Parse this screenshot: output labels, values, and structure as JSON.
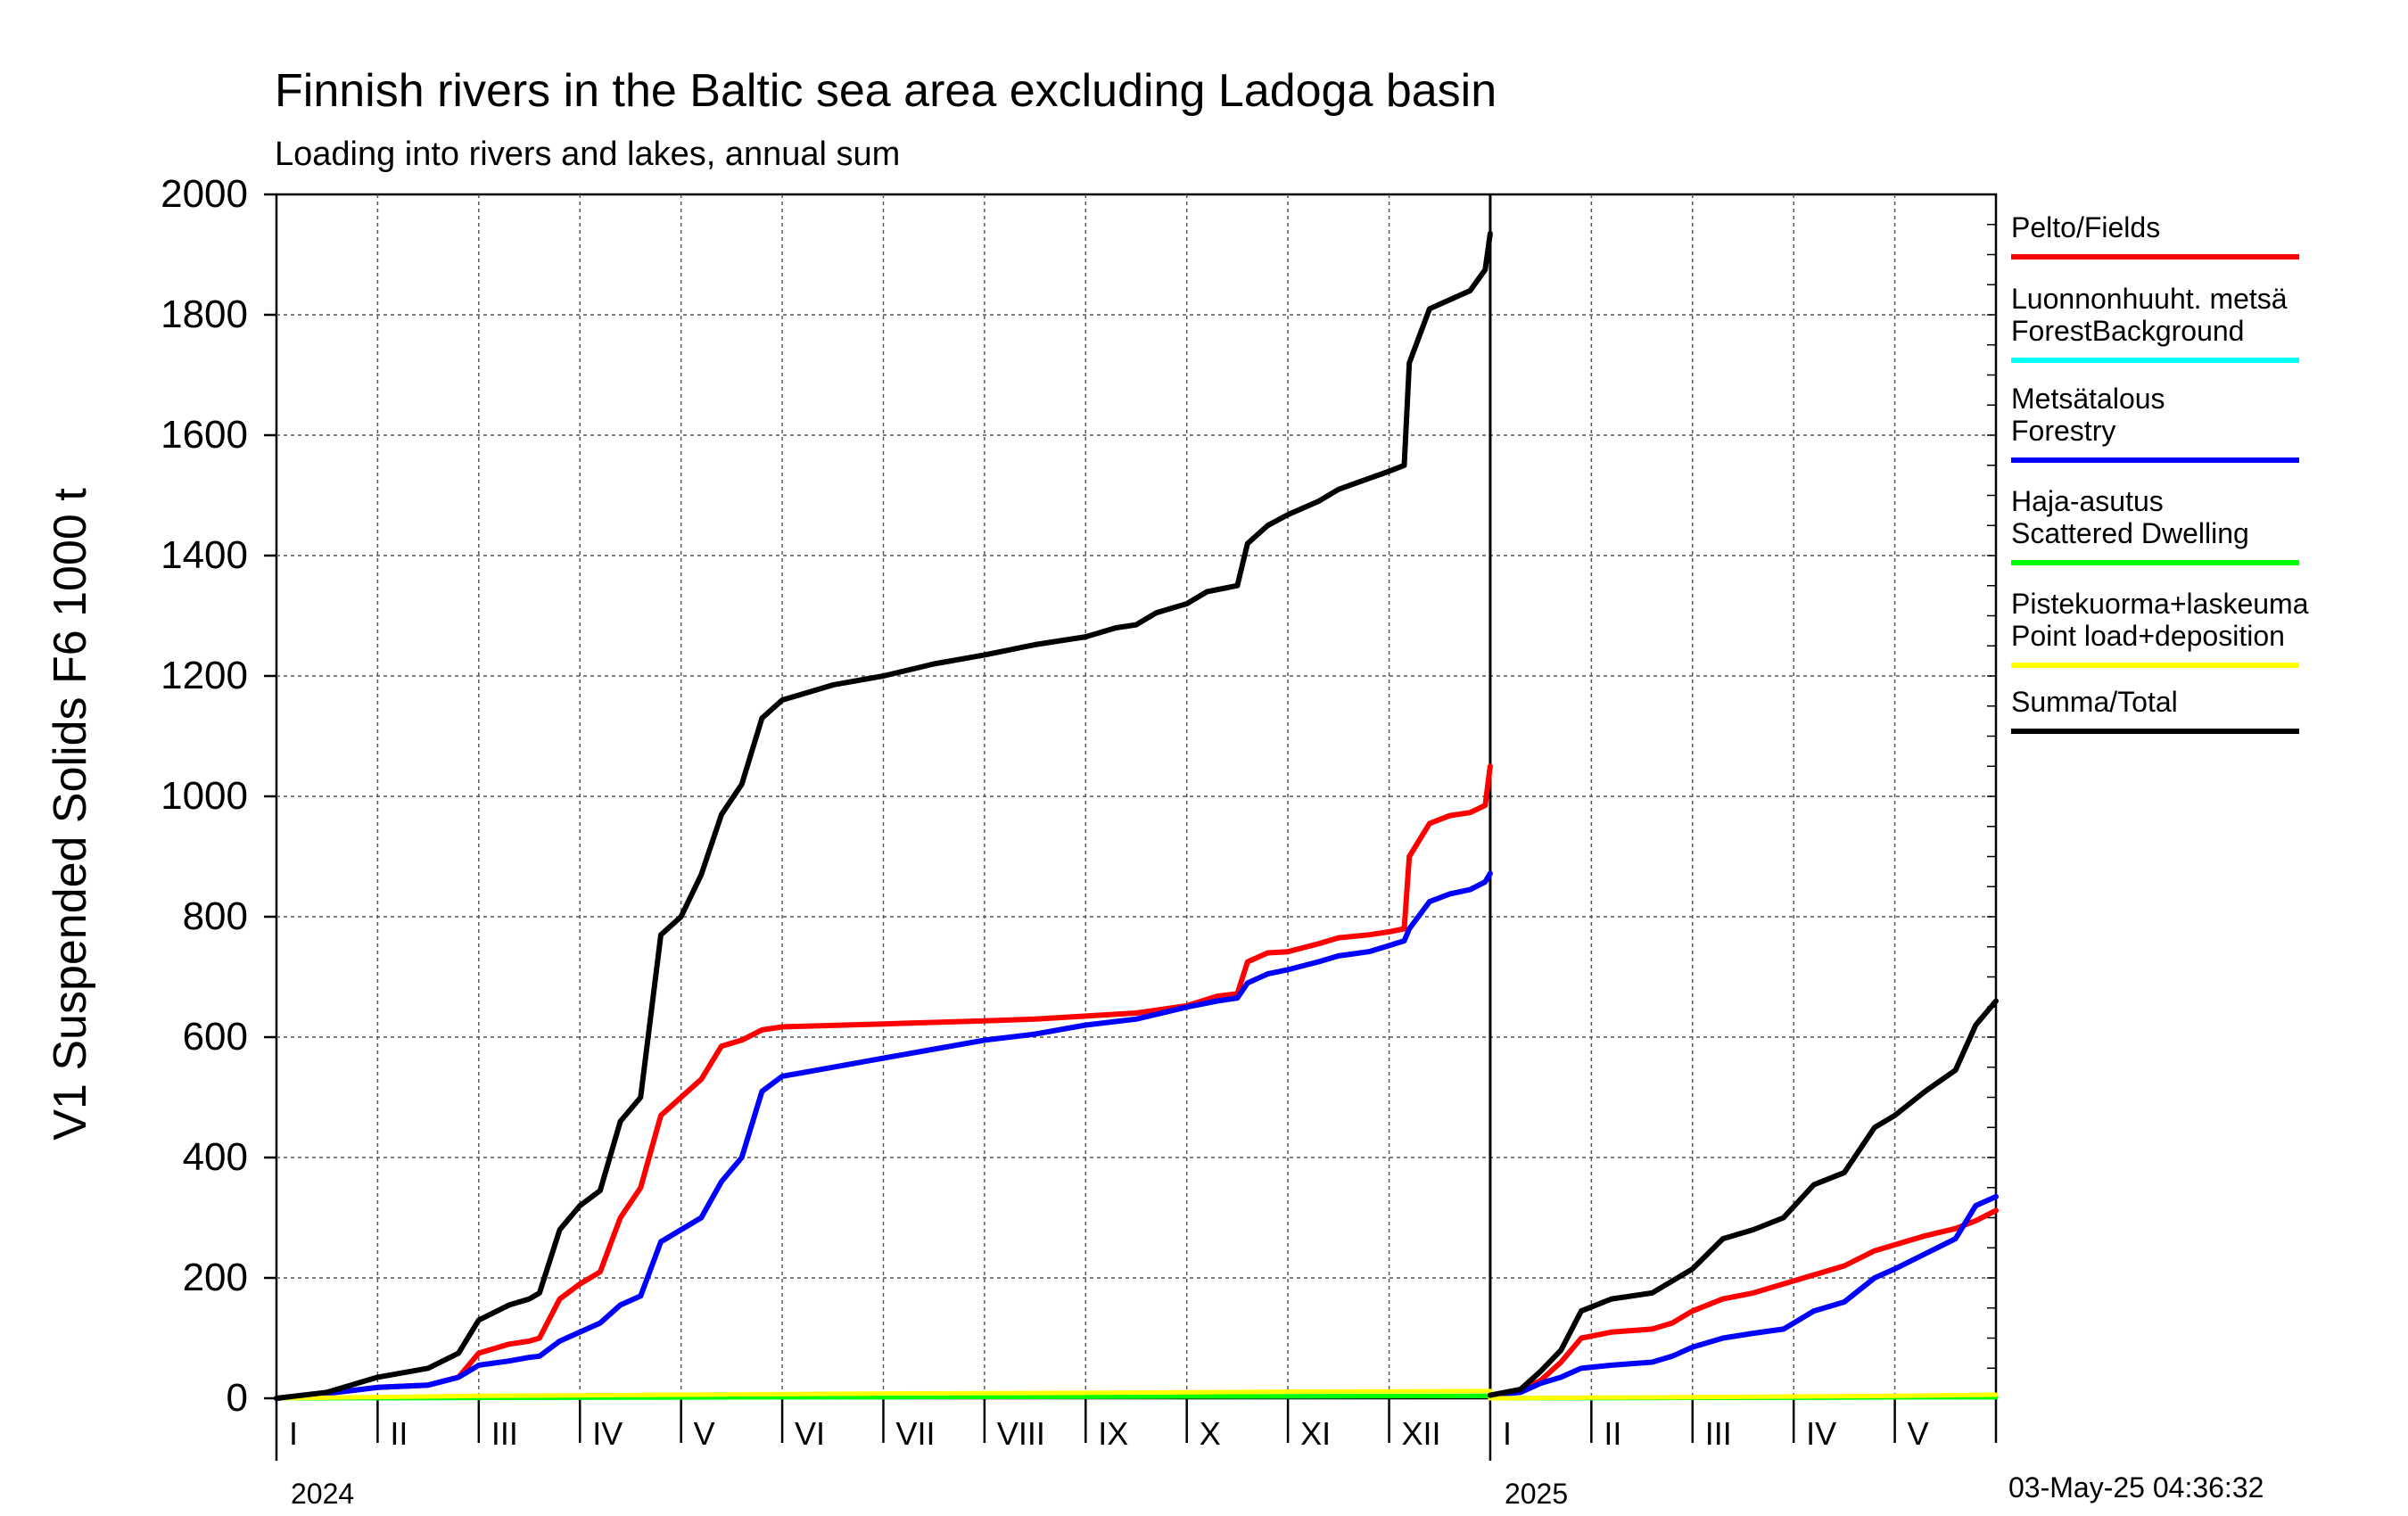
{
  "title": "Finnish rivers in the Baltic sea area excluding Ladoga basin",
  "subtitle": "Loading into rivers and lakes, annual sum",
  "timestamp": "03-May-25 04:36:32",
  "chart_data": {
    "type": "line",
    "title": "Finnish rivers in the Baltic sea area excluding Ladoga basin",
    "subtitle": "Loading into rivers and lakes, annual sum",
    "ylabel": "V1 Suspended Solids F6 1000 t",
    "ylim": [
      0,
      2000
    ],
    "yticks": [
      0,
      200,
      400,
      600,
      800,
      1000,
      1200,
      1400,
      1600,
      1800,
      2000
    ],
    "x_unit": "month index from start of 2024",
    "xlim": [
      0,
      17
    ],
    "x_month_labels": [
      "I",
      "II",
      "III",
      "IV",
      "V",
      "VI",
      "VII",
      "VIII",
      "IX",
      "X",
      "XI",
      "XII",
      "I",
      "II",
      "III",
      "IV",
      "V"
    ],
    "year_labels": [
      {
        "label": "2024",
        "at": 0
      },
      {
        "label": "2025",
        "at": 12
      }
    ],
    "grid": true,
    "legend_position": "right",
    "series": [
      {
        "name": "Pelto/Fields",
        "color": "#ff0000",
        "segments": [
          [
            [
              0,
              0
            ],
            [
              0.5,
              8
            ],
            [
              1,
              18
            ],
            [
              1.5,
              22
            ],
            [
              1.8,
              35
            ],
            [
              2,
              75
            ],
            [
              2.3,
              90
            ],
            [
              2.5,
              95
            ],
            [
              2.6,
              100
            ],
            [
              2.8,
              165
            ],
            [
              3,
              190
            ],
            [
              3.2,
              210
            ],
            [
              3.4,
              300
            ],
            [
              3.6,
              350
            ],
            [
              3.8,
              470
            ],
            [
              4,
              500
            ],
            [
              4.2,
              530
            ],
            [
              4.4,
              585
            ],
            [
              4.6,
              595
            ],
            [
              4.8,
              612
            ],
            [
              5,
              617
            ],
            [
              6,
              622
            ],
            [
              7,
              627
            ],
            [
              7.5,
              630
            ],
            [
              8,
              635
            ],
            [
              8.5,
              640
            ],
            [
              9,
              652
            ],
            [
              9.3,
              668
            ],
            [
              9.5,
              672
            ],
            [
              9.6,
              725
            ],
            [
              9.8,
              740
            ],
            [
              10,
              742
            ],
            [
              10.3,
              755
            ],
            [
              10.5,
              765
            ],
            [
              10.8,
              770
            ],
            [
              11,
              775
            ],
            [
              11.15,
              780
            ],
            [
              11.2,
              900
            ],
            [
              11.4,
              955
            ],
            [
              11.6,
              968
            ],
            [
              11.8,
              973
            ],
            [
              11.95,
              985
            ],
            [
              12,
              1050
            ]
          ],
          [
            [
              12,
              5
            ],
            [
              12.3,
              12
            ],
            [
              12.5,
              30
            ],
            [
              12.7,
              60
            ],
            [
              12.9,
              100
            ],
            [
              13.2,
              110
            ],
            [
              13.6,
              115
            ],
            [
              13.8,
              125
            ],
            [
              14,
              145
            ],
            [
              14.3,
              165
            ],
            [
              14.6,
              175
            ],
            [
              14.9,
              190
            ],
            [
              15.2,
              205
            ],
            [
              15.5,
              220
            ],
            [
              15.8,
              245
            ],
            [
              16,
              255
            ],
            [
              16.3,
              270
            ],
            [
              16.6,
              282
            ],
            [
              16.8,
              295
            ],
            [
              17,
              312
            ]
          ]
        ]
      },
      {
        "name": "Luonnonhuuht. metsä ForestBackground",
        "color": "#00ffff",
        "segments": [
          [
            [
              0,
              0
            ],
            [
              3,
              1
            ],
            [
              6,
              2
            ],
            [
              9,
              3
            ],
            [
              12,
              4
            ]
          ],
          [
            [
              12,
              0
            ],
            [
              15,
              1
            ],
            [
              17,
              2
            ]
          ]
        ]
      },
      {
        "name": "Metsätalous Forestry",
        "color": "#0000ff",
        "segments": [
          [
            [
              0,
              0
            ],
            [
              0.5,
              8
            ],
            [
              1,
              18
            ],
            [
              1.5,
              22
            ],
            [
              1.8,
              35
            ],
            [
              2,
              55
            ],
            [
              2.3,
              62
            ],
            [
              2.5,
              68
            ],
            [
              2.6,
              70
            ],
            [
              2.8,
              95
            ],
            [
              3,
              110
            ],
            [
              3.2,
              125
            ],
            [
              3.4,
              155
            ],
            [
              3.6,
              170
            ],
            [
              3.8,
              260
            ],
            [
              4,
              280
            ],
            [
              4.2,
              300
            ],
            [
              4.4,
              360
            ],
            [
              4.6,
              400
            ],
            [
              4.8,
              510
            ],
            [
              5,
              535
            ],
            [
              5.5,
              550
            ],
            [
              6,
              565
            ],
            [
              6.5,
              580
            ],
            [
              7,
              595
            ],
            [
              7.5,
              605
            ],
            [
              8,
              620
            ],
            [
              8.5,
              630
            ],
            [
              9,
              650
            ],
            [
              9.3,
              660
            ],
            [
              9.5,
              665
            ],
            [
              9.6,
              690
            ],
            [
              9.8,
              705
            ],
            [
              10,
              712
            ],
            [
              10.3,
              725
            ],
            [
              10.5,
              735
            ],
            [
              10.8,
              742
            ],
            [
              11,
              752
            ],
            [
              11.15,
              760
            ],
            [
              11.2,
              780
            ],
            [
              11.4,
              825
            ],
            [
              11.6,
              838
            ],
            [
              11.8,
              845
            ],
            [
              11.95,
              858
            ],
            [
              12,
              872
            ]
          ],
          [
            [
              12,
              5
            ],
            [
              12.3,
              10
            ],
            [
              12.5,
              25
            ],
            [
              12.7,
              35
            ],
            [
              12.9,
              50
            ],
            [
              13.2,
              55
            ],
            [
              13.6,
              60
            ],
            [
              13.8,
              70
            ],
            [
              14,
              85
            ],
            [
              14.3,
              100
            ],
            [
              14.6,
              108
            ],
            [
              14.9,
              115
            ],
            [
              15.2,
              145
            ],
            [
              15.5,
              160
            ],
            [
              15.8,
              200
            ],
            [
              16,
              215
            ],
            [
              16.3,
              240
            ],
            [
              16.6,
              265
            ],
            [
              16.8,
              320
            ],
            [
              17,
              335
            ]
          ]
        ]
      },
      {
        "name": "Haja-asutus Scattered Dwelling",
        "color": "#00ff00",
        "segments": [
          [
            [
              0,
              0
            ],
            [
              3,
              1
            ],
            [
              6,
              2
            ],
            [
              9,
              3
            ],
            [
              12,
              4
            ]
          ],
          [
            [
              12,
              0
            ],
            [
              15,
              1
            ],
            [
              17,
              2
            ]
          ]
        ]
      },
      {
        "name": "Pistekuorma+laskeuma Point load+deposition",
        "color": "#ffff00",
        "segments": [
          [
            [
              0,
              0
            ],
            [
              2,
              4
            ],
            [
              4,
              6
            ],
            [
              6,
              8
            ],
            [
              8,
              9
            ],
            [
              10,
              11
            ],
            [
              12,
              12
            ]
          ],
          [
            [
              12,
              0
            ],
            [
              13,
              1
            ],
            [
              14,
              2
            ],
            [
              15,
              3
            ],
            [
              16,
              4
            ],
            [
              17,
              6
            ]
          ]
        ]
      },
      {
        "name": "Summa/Total",
        "color": "#000000",
        "segments": [
          [
            [
              0,
              0
            ],
            [
              0.5,
              10
            ],
            [
              1,
              35
            ],
            [
              1.5,
              50
            ],
            [
              1.8,
              75
            ],
            [
              2,
              130
            ],
            [
              2.3,
              155
            ],
            [
              2.5,
              165
            ],
            [
              2.6,
              175
            ],
            [
              2.8,
              280
            ],
            [
              3,
              320
            ],
            [
              3.2,
              345
            ],
            [
              3.4,
              460
            ],
            [
              3.6,
              500
            ],
            [
              3.8,
              770
            ],
            [
              4,
              800
            ],
            [
              4.2,
              870
            ],
            [
              4.4,
              970
            ],
            [
              4.6,
              1020
            ],
            [
              4.8,
              1130
            ],
            [
              5,
              1160
            ],
            [
              5.5,
              1185
            ],
            [
              6,
              1200
            ],
            [
              6.5,
              1220
            ],
            [
              7,
              1235
            ],
            [
              7.5,
              1252
            ],
            [
              8,
              1265
            ],
            [
              8.3,
              1280
            ],
            [
              8.5,
              1285
            ],
            [
              8.7,
              1305
            ],
            [
              9,
              1320
            ],
            [
              9.2,
              1340
            ],
            [
              9.5,
              1350
            ],
            [
              9.6,
              1420
            ],
            [
              9.8,
              1450
            ],
            [
              10,
              1468
            ],
            [
              10.3,
              1490
            ],
            [
              10.5,
              1510
            ],
            [
              10.8,
              1528
            ],
            [
              11,
              1540
            ],
            [
              11.15,
              1550
            ],
            [
              11.2,
              1720
            ],
            [
              11.4,
              1810
            ],
            [
              11.6,
              1825
            ],
            [
              11.8,
              1840
            ],
            [
              11.95,
              1875
            ],
            [
              12,
              1935
            ]
          ],
          [
            [
              12,
              5
            ],
            [
              12.3,
              15
            ],
            [
              12.5,
              45
            ],
            [
              12.7,
              80
            ],
            [
              12.9,
              145
            ],
            [
              13.2,
              165
            ],
            [
              13.6,
              175
            ],
            [
              13.8,
              195
            ],
            [
              14,
              215
            ],
            [
              14.3,
              265
            ],
            [
              14.6,
              280
            ],
            [
              14.9,
              300
            ],
            [
              15.2,
              355
            ],
            [
              15.5,
              375
            ],
            [
              15.8,
              450
            ],
            [
              16,
              470
            ],
            [
              16.3,
              510
            ],
            [
              16.6,
              545
            ],
            [
              16.8,
              620
            ],
            [
              17,
              660
            ]
          ]
        ]
      }
    ]
  },
  "legend": [
    {
      "lines": [
        "Pelto/Fields"
      ],
      "color": "#ff0000"
    },
    {
      "lines": [
        "Luonnonhuuht. metsä",
        "ForestBackground"
      ],
      "color": "#00ffff"
    },
    {
      "lines": [
        "Metsätalous",
        "Forestry"
      ],
      "color": "#0000ff"
    },
    {
      "lines": [
        "Haja-asutus",
        "Scattered Dwelling"
      ],
      "color": "#00ff00"
    },
    {
      "lines": [
        "Pistekuorma+laskeuma",
        "Point load+deposition"
      ],
      "color": "#ffff00"
    },
    {
      "lines": [
        "Summa/Total"
      ],
      "color": "#000000"
    }
  ]
}
